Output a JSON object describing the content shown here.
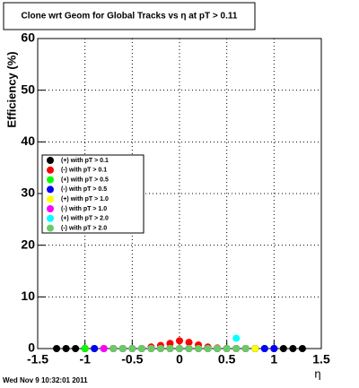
{
  "chart_data": {
    "type": "scatter",
    "title": "Clone wrt Geom for Global Tracks vs   η at pT > 0.11",
    "x_label": "η",
    "y_label": "Efficiency (%)",
    "footer": "Wed Nov  9 10:32:01 2011",
    "xlim": [
      -1.5,
      1.5
    ],
    "xticks": [
      -1.5,
      -1,
      -0.5,
      0,
      0.5,
      1,
      1.5
    ],
    "ylim": [
      0,
      60
    ],
    "yticks": [
      0,
      10,
      20,
      30,
      40,
      50,
      60
    ],
    "grid": true,
    "x": [
      -1.3,
      -1.2,
      -1.1,
      -1.0,
      -0.9,
      -0.8,
      -0.7,
      -0.6,
      -0.5,
      -0.4,
      -0.3,
      -0.2,
      -0.1,
      0,
      0.1,
      0.2,
      0.3,
      0.4,
      0.5,
      0.6,
      0.7,
      0.8,
      0.9,
      1.0,
      1.1,
      1.2,
      1.3
    ],
    "series": [
      {
        "name": "(+) with pT > 0.1",
        "color": "#000000",
        "values": [
          0,
          0,
          0,
          0,
          0,
          0,
          0,
          0,
          0,
          0,
          0,
          0,
          0,
          0,
          0,
          0,
          0,
          0,
          0,
          0,
          0,
          0,
          0,
          0,
          0,
          0,
          0
        ]
      },
      {
        "name": "(-) with pT > 0.1",
        "color": "#ff0000",
        "values": [
          null,
          null,
          null,
          0,
          0,
          0,
          0,
          0,
          0,
          0,
          0.3,
          0.6,
          1.0,
          1.5,
          1.2,
          0.7,
          0.3,
          0.1,
          0,
          0,
          0,
          0,
          0,
          0,
          null,
          null,
          null
        ]
      },
      {
        "name": "(+) with pT > 0.5",
        "color": "#00ff00",
        "values": [
          null,
          null,
          null,
          0,
          0,
          0,
          0,
          0,
          0,
          0,
          0,
          0,
          0,
          0,
          0,
          0,
          0,
          0,
          0,
          0,
          0,
          0,
          0,
          0,
          null,
          null,
          null
        ]
      },
      {
        "name": "(-) with pT > 0.5",
        "color": "#0000ff",
        "values": [
          null,
          null,
          null,
          null,
          0,
          0,
          0,
          0,
          0,
          0,
          0,
          0,
          0,
          0,
          0,
          0,
          0,
          0,
          0,
          0,
          0,
          0,
          0,
          0,
          null,
          null,
          null
        ]
      },
      {
        "name": "(+) with pT > 1.0",
        "color": "#ffff00",
        "values": [
          null,
          null,
          null,
          null,
          null,
          0,
          0,
          0,
          0,
          0,
          0,
          0,
          0,
          0,
          0,
          0,
          0,
          0,
          0,
          0,
          0,
          0,
          null,
          null,
          null,
          null,
          null
        ]
      },
      {
        "name": "(-) with pT > 1.0",
        "color": "#ff00ff",
        "values": [
          null,
          null,
          null,
          null,
          null,
          0,
          0,
          0,
          0,
          0,
          0,
          0,
          0,
          0,
          0,
          0,
          0,
          0,
          0,
          0,
          0,
          null,
          null,
          null,
          null,
          null,
          null
        ]
      },
      {
        "name": "(+) with pT > 2.0",
        "color": "#00ffff",
        "values": [
          null,
          null,
          null,
          null,
          null,
          null,
          null,
          null,
          null,
          null,
          null,
          null,
          null,
          null,
          null,
          null,
          null,
          null,
          null,
          2,
          null,
          null,
          null,
          null,
          null,
          null,
          null
        ]
      },
      {
        "name": "(-) with pT > 2.0",
        "color": "#66cc66",
        "values": [
          null,
          null,
          null,
          null,
          null,
          null,
          0,
          0,
          0,
          0,
          0,
          0,
          0,
          0,
          0,
          0,
          0,
          0,
          0,
          0,
          0,
          null,
          null,
          null,
          null,
          null,
          null
        ]
      }
    ]
  }
}
